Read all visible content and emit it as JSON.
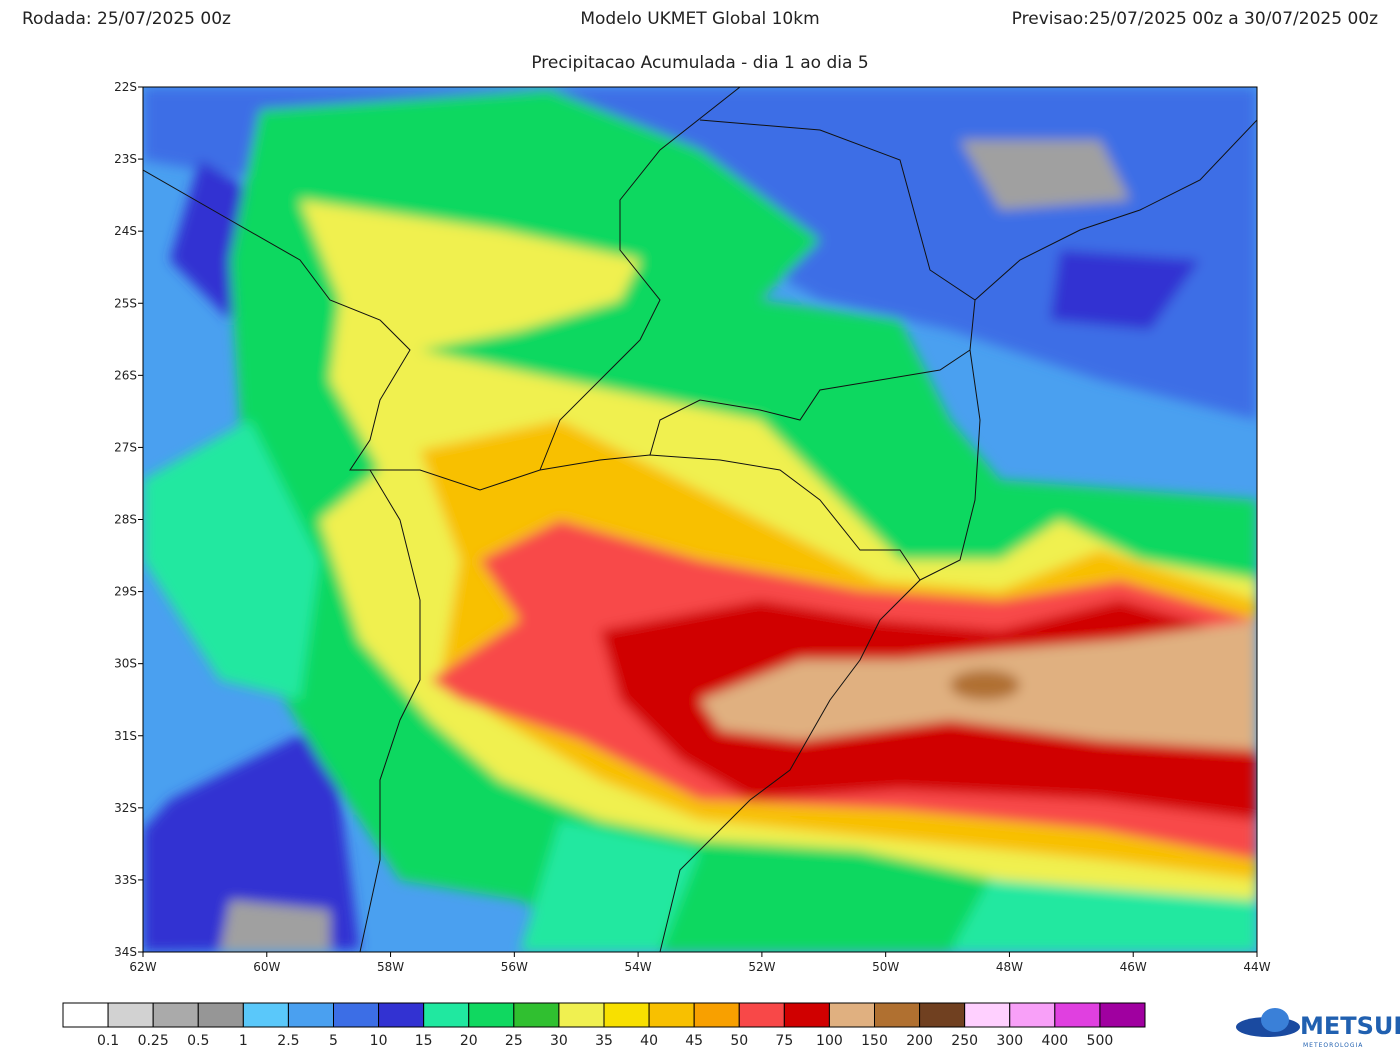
{
  "header": {
    "run": "Rodada: 25/07/2025 00z",
    "model": "Modelo UKMET Global 10km",
    "forecast": "Previsao:25/07/2025 00z a 30/07/2025 00z",
    "subtitle": "Precipitacao Acumulada - dia 1 ao dia 5"
  },
  "map": {
    "lat_labels": [
      "22S",
      "23S",
      "24S",
      "25S",
      "26S",
      "27S",
      "28S",
      "29S",
      "30S",
      "31S",
      "32S",
      "33S",
      "34S"
    ],
    "lon_labels": [
      "62W",
      "60W",
      "58W",
      "56W",
      "54W",
      "52W",
      "50W",
      "48W",
      "46W",
      "44W"
    ]
  },
  "colorbar": {
    "labels": [
      0.1,
      0.25,
      0.5,
      1,
      2.5,
      5,
      10,
      15,
      20,
      25,
      30,
      35,
      40,
      45,
      50,
      75,
      100,
      150,
      200,
      250,
      300,
      400,
      500
    ],
    "colors": [
      "#ffffff",
      "#d2d2d2",
      "#aaaaaa",
      "#969696",
      "#5ac8fa",
      "#4aa0f0",
      "#3c6ee6",
      "#3232d2",
      "#20e8a0",
      "#10d860",
      "#30c030",
      "#f0f050",
      "#f8e000",
      "#f8c000",
      "#f8a000",
      "#f84848",
      "#d00000",
      "#e0b080",
      "#b07030",
      "#704020",
      "#ffd0ff",
      "#f8a0f8",
      "#e040e0",
      "#a000a0"
    ]
  },
  "logo": {
    "name": "METSUL",
    "tagline": "METEOROLOGIA"
  }
}
